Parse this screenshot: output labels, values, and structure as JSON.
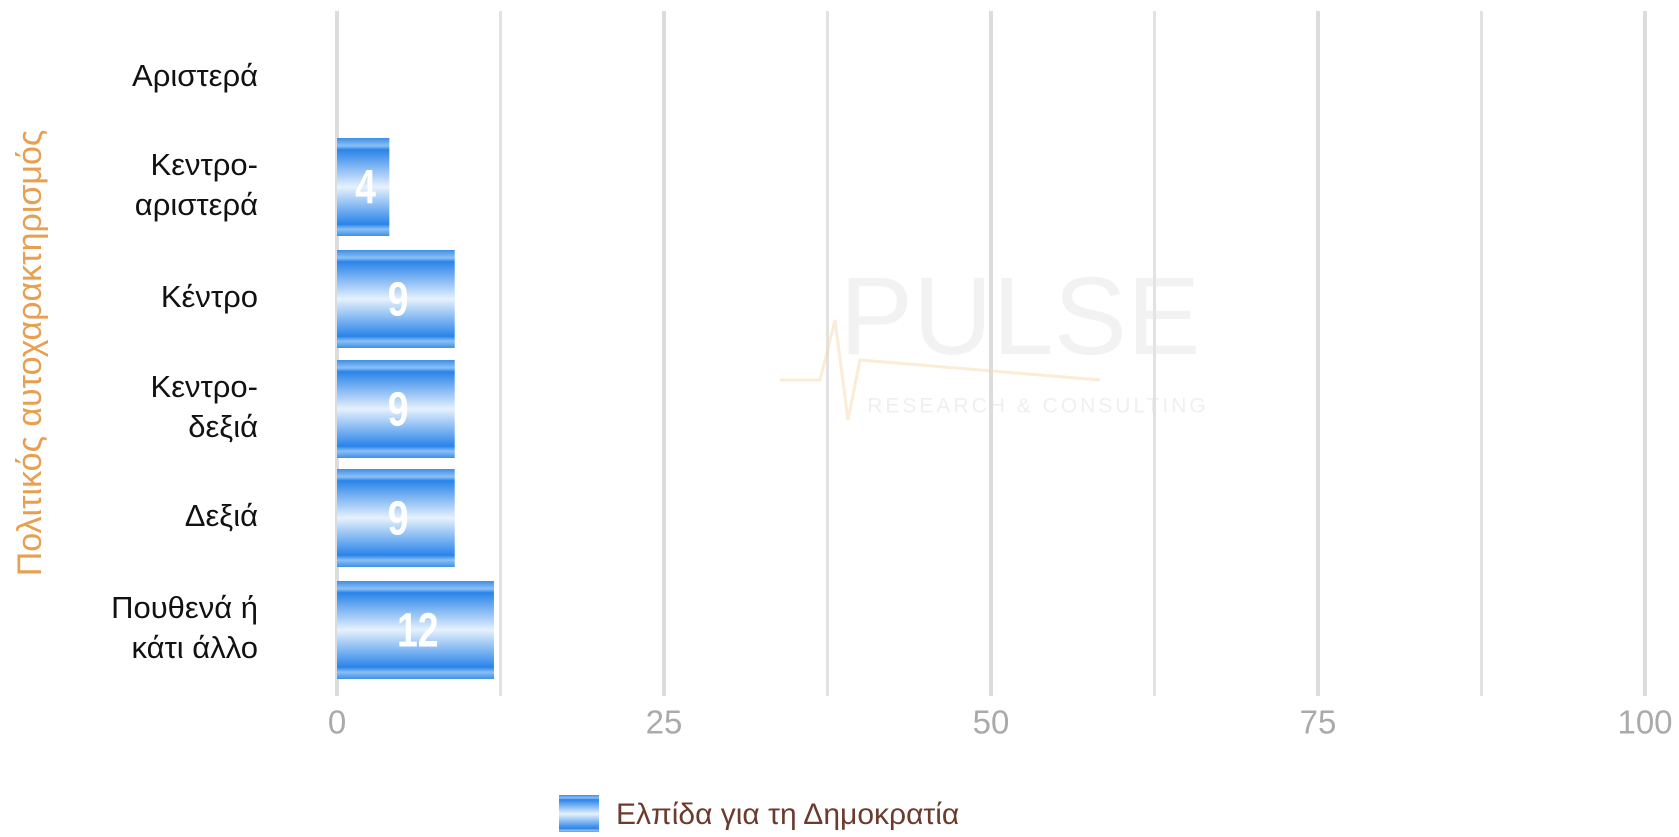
{
  "chart_data": {
    "type": "hbar",
    "y_label": "Πολιτικός αυτοχαρακτηρισμός",
    "categories": [
      "Αριστερά",
      "Κεντρο-\nαριστερά",
      "Κέντρο",
      "Κεντρο-\nδεξιά",
      "Δεξιά",
      "Πουθενά ή\nκάτι άλλο"
    ],
    "series": [
      {
        "name": "Ελπίδα για τη Δημοκρατία",
        "color": "#3d8fe8",
        "values": [
          null,
          4,
          9,
          9,
          9,
          12
        ]
      }
    ],
    "xlim": [
      0,
      100
    ],
    "xticks": [
      0,
      25,
      50,
      75,
      100
    ],
    "xminor_ticks": [
      12.5,
      37.5,
      62.5,
      87.5
    ],
    "grid": true,
    "legend": "bottom",
    "watermark": {
      "name": "PULSE",
      "tagline": "RESEARCH & CONSULTING"
    }
  }
}
